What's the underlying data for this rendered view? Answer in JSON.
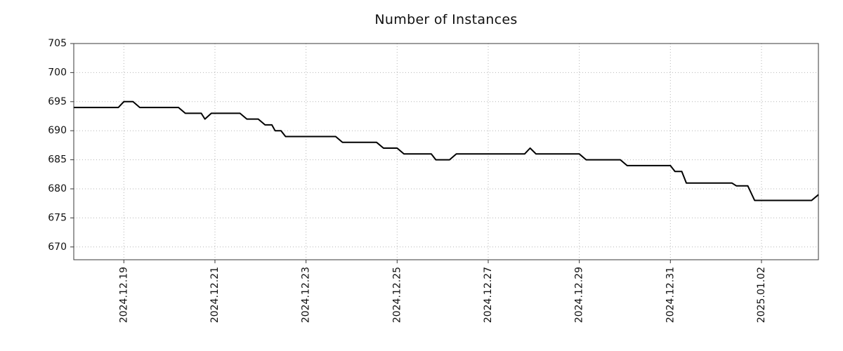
{
  "chart_data": {
    "type": "line",
    "title": "Number of Instances",
    "xlabel": "",
    "ylabel": "",
    "background": "#ffffff",
    "border_color": "#3a3a3a",
    "grid": {
      "visible": true,
      "style": "dotted",
      "color": "#b5b5b5"
    },
    "x_axis": {
      "unit": "days since 2024-12-18 00:00",
      "min": -0.1,
      "max": 16.25,
      "ticks": [
        {
          "t": 1,
          "label": "2024.12.19"
        },
        {
          "t": 3,
          "label": "2024.12.21"
        },
        {
          "t": 5,
          "label": "2024.12.23"
        },
        {
          "t": 7,
          "label": "2024.12.25"
        },
        {
          "t": 9,
          "label": "2024.12.27"
        },
        {
          "t": 11,
          "label": "2024.12.29"
        },
        {
          "t": 13,
          "label": "2024.12.31"
        },
        {
          "t": 15,
          "label": "2025.01.02"
        }
      ],
      "label_rotation_deg": 90
    },
    "y_axis": {
      "min": 667.8,
      "max": 705,
      "ticks": [
        670,
        675,
        680,
        685,
        690,
        695,
        700,
        705
      ]
    },
    "series": [
      {
        "name": "instances",
        "color": "#000000",
        "line_width": 2,
        "points": [
          [
            -0.1,
            694
          ],
          [
            0.88,
            694
          ],
          [
            1.0,
            695
          ],
          [
            1.2,
            695
          ],
          [
            1.35,
            694
          ],
          [
            2.2,
            694
          ],
          [
            2.35,
            693
          ],
          [
            2.7,
            693
          ],
          [
            2.78,
            692
          ],
          [
            2.92,
            693
          ],
          [
            3.55,
            693
          ],
          [
            3.7,
            692
          ],
          [
            3.95,
            692
          ],
          [
            4.1,
            691
          ],
          [
            4.25,
            691
          ],
          [
            4.32,
            690
          ],
          [
            4.45,
            690
          ],
          [
            4.55,
            689
          ],
          [
            5.65,
            689
          ],
          [
            5.8,
            688
          ],
          [
            6.55,
            688
          ],
          [
            6.7,
            687
          ],
          [
            7.0,
            687
          ],
          [
            7.15,
            686
          ],
          [
            7.75,
            686
          ],
          [
            7.85,
            685
          ],
          [
            8.15,
            685
          ],
          [
            8.3,
            686
          ],
          [
            9.8,
            686
          ],
          [
            9.92,
            687
          ],
          [
            10.05,
            686
          ],
          [
            11.0,
            686
          ],
          [
            11.15,
            685
          ],
          [
            11.9,
            685
          ],
          [
            12.05,
            684
          ],
          [
            13.0,
            684
          ],
          [
            13.1,
            683
          ],
          [
            13.25,
            683
          ],
          [
            13.35,
            681
          ],
          [
            14.35,
            681
          ],
          [
            14.45,
            680.5
          ],
          [
            14.7,
            680.5
          ],
          [
            14.85,
            678
          ],
          [
            16.1,
            678
          ],
          [
            16.25,
            679
          ]
        ]
      }
    ]
  }
}
